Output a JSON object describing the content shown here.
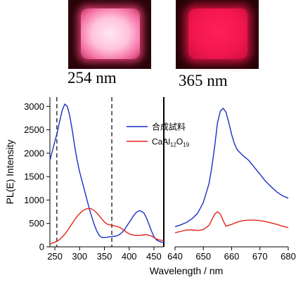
{
  "photos": {
    "left_caption": "254 nm",
    "right_caption": "365 nm"
  },
  "colors": {
    "synthesized": "#1a2fc8",
    "reference": "#e3241b",
    "photo_left_glow": "#ffc2da",
    "photo_right_glow": "#f2164f"
  },
  "chart_data": [
    {
      "type": "line",
      "panel": "excitation",
      "xlim": [
        240,
        470
      ],
      "ylim": [
        0,
        3200
      ],
      "x_ticks": [
        250,
        300,
        350,
        400,
        450
      ],
      "x_tick_labels": [
        "250",
        "300",
        "350",
        "400",
        "450"
      ],
      "y_ticks": [
        0,
        500,
        1000,
        1500,
        2000,
        2500,
        3000
      ],
      "y_tick_labels": [
        "0",
        "500",
        "1000",
        "1500",
        "2000",
        "2500",
        "3000"
      ],
      "ylabel": "PL(E) Intensity",
      "xlabel": "",
      "reference_lines_x": [
        254,
        365
      ],
      "legend": {
        "placement": "top-right",
        "entries": [
          {
            "text": "合成試料",
            "series": 0
          },
          {
            "text": "CaAl12O19",
            "main": "CaAl",
            "sub1": "12",
            "mid": "O",
            "sub2": "19",
            "series": 1
          }
        ]
      },
      "series": [
        {
          "x": [
            240,
            245,
            250,
            255,
            260,
            265,
            270,
            275,
            280,
            285,
            290,
            295,
            300,
            305,
            310,
            315,
            320,
            325,
            330,
            335,
            340,
            345,
            350,
            355,
            360,
            365,
            370,
            375,
            380,
            385,
            390,
            395,
            400,
            405,
            410,
            415,
            420,
            425,
            430,
            435,
            440,
            445,
            450,
            455,
            460,
            465,
            470
          ],
          "y": [
            1850,
            2050,
            2250,
            2450,
            2700,
            2920,
            3050,
            3000,
            2800,
            2500,
            2150,
            1850,
            1600,
            1400,
            1200,
            1000,
            800,
            620,
            460,
            330,
            240,
            200,
            200,
            205,
            215,
            220,
            225,
            235,
            260,
            300,
            360,
            440,
            520,
            600,
            680,
            740,
            770,
            760,
            720,
            620,
            480,
            340,
            220,
            150,
            120,
            100,
            90
          ]
        },
        {
          "x": [
            240,
            245,
            250,
            255,
            260,
            265,
            270,
            275,
            280,
            285,
            290,
            295,
            300,
            305,
            310,
            315,
            320,
            325,
            330,
            335,
            340,
            345,
            350,
            355,
            360,
            365,
            370,
            375,
            380,
            385,
            390,
            395,
            400,
            405,
            410,
            415,
            420,
            425,
            430,
            435,
            440,
            445,
            450,
            455,
            460,
            465,
            470
          ],
          "y": [
            60,
            80,
            100,
            125,
            160,
            210,
            270,
            340,
            420,
            500,
            580,
            650,
            710,
            760,
            795,
            815,
            820,
            805,
            770,
            720,
            660,
            590,
            530,
            490,
            470,
            460,
            450,
            435,
            420,
            390,
            350,
            310,
            280,
            260,
            250,
            245,
            245,
            250,
            255,
            260,
            250,
            230,
            200,
            170,
            150,
            140,
            130
          ]
        }
      ]
    },
    {
      "type": "line",
      "panel": "emission",
      "xlim": [
        640,
        680
      ],
      "ylim": [
        0,
        3200
      ],
      "x_ticks": [
        640,
        650,
        660,
        670,
        680
      ],
      "x_tick_labels": [
        "640",
        "650",
        "660",
        "670",
        "680"
      ],
      "xlabel": "Wavelength / nm",
      "series": [
        {
          "x": [
            640,
            642,
            644,
            646,
            648,
            650,
            652,
            653,
            654,
            655,
            656,
            657,
            658,
            659,
            660,
            661,
            662,
            664,
            666,
            668,
            670,
            672,
            674,
            676,
            678,
            680
          ],
          "y": [
            430,
            470,
            520,
            600,
            720,
            950,
            1350,
            1700,
            2150,
            2650,
            2900,
            2960,
            2880,
            2650,
            2400,
            2200,
            2070,
            1950,
            1850,
            1700,
            1550,
            1400,
            1280,
            1170,
            1090,
            1040
          ]
        },
        {
          "x": [
            640,
            642,
            644,
            646,
            648,
            650,
            652,
            653,
            654,
            655,
            656,
            657,
            658,
            660,
            662,
            664,
            666,
            668,
            670,
            672,
            674,
            676,
            678,
            680
          ],
          "y": [
            300,
            330,
            360,
            360,
            350,
            370,
            460,
            580,
            700,
            750,
            700,
            560,
            440,
            480,
            530,
            560,
            570,
            570,
            560,
            540,
            510,
            480,
            440,
            410
          ]
        }
      ]
    }
  ]
}
